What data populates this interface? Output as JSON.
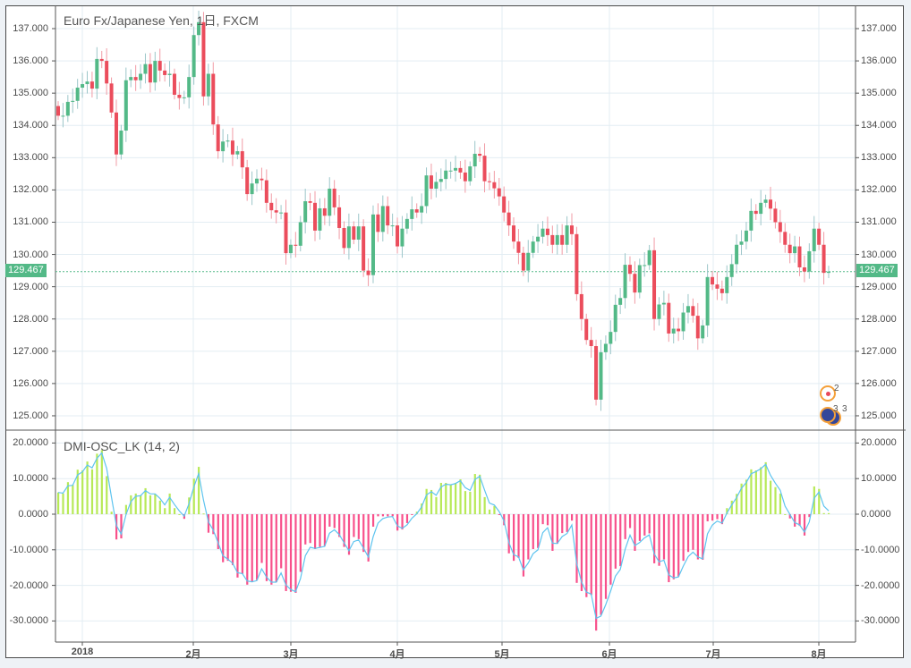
{
  "title": "Euro Fx/Japanese Yen, 1日, FXCM",
  "indicator_title": "DMI-OSC_LK (14, 2)",
  "last_price": "129.467",
  "last_price_value": 129.467,
  "price_axis": [
    "137.000",
    "136.000",
    "135.000",
    "134.000",
    "133.000",
    "132.000",
    "131.000",
    "130.000",
    "129.000",
    "128.000",
    "127.000",
    "126.000",
    "125.000"
  ],
  "price_axis_values": [
    137,
    136,
    135,
    134,
    133,
    132,
    131,
    130,
    129,
    128,
    127,
    126,
    125
  ],
  "osc_axis": [
    "20.0000",
    "10.0000",
    "0.0000",
    "-10.0000",
    "-20.0000",
    "-30.0000"
  ],
  "osc_axis_values": [
    20,
    10,
    0,
    -10,
    -20,
    -30
  ],
  "time_axis": [
    "2018",
    "2月",
    "3月",
    "4月",
    "5月",
    "6月",
    "7月",
    "8月"
  ],
  "event_markers": [
    {
      "count": "2",
      "type": "event-dot"
    },
    {
      "count": "3",
      "type": "eu-flag"
    },
    {
      "count": "3",
      "type": "eu-flag"
    }
  ],
  "colors": {
    "up": "#53b987",
    "down": "#eb4d5c",
    "up_wick": "#9cc6c9",
    "down_wick": "#f19ba5",
    "hist_pos": "#b7e957",
    "hist_neg": "#f8508b",
    "signal": "#5ec4ef",
    "grid": "#e3edf3",
    "last_line": "#53b987"
  },
  "chart_data": {
    "type": "candlestick",
    "first_open": 134.6,
    "closes": [
      134.3,
      134.3,
      134.73,
      134.76,
      135.17,
      135.28,
      135.36,
      135.14,
      136.06,
      136.0,
      135.3,
      134.4,
      133.1,
      133.84,
      135.4,
      135.5,
      135.4,
      135.6,
      135.9,
      135.33,
      136.0,
      135.7,
      135.56,
      135.6,
      134.95,
      134.85,
      134.87,
      135.5,
      136.8,
      137.2,
      134.9,
      135.6,
      134.03,
      133.2,
      133.5,
      133.53,
      133.1,
      133.2,
      132.7,
      131.87,
      132.2,
      132.35,
      132.3,
      131.6,
      131.37,
      131.3,
      131.3,
      130.04,
      130.3,
      130.27,
      131.0,
      131.65,
      131.6,
      130.74,
      131.43,
      131.2,
      132.04,
      131.46,
      130.82,
      130.2,
      130.87,
      130.46,
      130.87,
      129.5,
      129.36,
      131.24,
      130.7,
      131.5,
      130.9,
      130.9,
      130.25,
      130.8,
      131.1,
      131.4,
      131.3,
      131.5,
      132.45,
      132.04,
      132.25,
      132.34,
      132.6,
      132.6,
      132.68,
      132.54,
      132.27,
      132.73,
      133.12,
      133.06,
      132.27,
      132.24,
      132.05,
      131.8,
      131.3,
      130.9,
      130.4,
      130.05,
      129.5,
      130.05,
      130.4,
      130.55,
      130.8,
      130.6,
      130.3,
      130.6,
      130.3,
      130.9,
      130.63,
      128.77,
      128.0,
      127.35,
      127.16,
      125.5,
      126.97,
      127.23,
      127.6,
      128.44,
      128.65,
      129.68,
      129.4,
      128.82,
      129.67,
      129.67,
      130.13,
      128.0,
      128.45,
      128.5,
      127.55,
      127.7,
      127.62,
      128.2,
      128.4,
      128.1,
      127.4,
      127.8,
      129.3,
      129.07,
      128.94,
      128.8,
      129.3,
      129.7,
      130.3,
      130.4,
      130.74,
      131.35,
      131.26,
      131.6,
      131.7,
      131.42,
      131.0,
      130.7,
      130.3,
      130.04,
      130.25,
      129.6,
      129.47,
      130.1,
      130.8,
      130.3,
      129.43,
      129.47
    ],
    "oscillator": [
      6.1,
      5.8,
      9,
      8.2,
      12.5,
      12.3,
      14.8,
      12.6,
      17,
      18,
      10.7,
      0.7,
      -7.1,
      -6.8,
      2.6,
      5.3,
      5.8,
      5.3,
      7.3,
      5.3,
      5.7,
      3.8,
      1.7,
      5.8,
      1.7,
      0,
      -1.3,
      4.7,
      10,
      13.3,
      0.2,
      -5.2,
      -5.6,
      -9.8,
      -13.5,
      -13.1,
      -14.3,
      -17.8,
      -16.8,
      -19.8,
      -19.1,
      -18.5,
      -13.7,
      -18.8,
      -19.8,
      -19.1,
      -15.2,
      -21.6,
      -21.8,
      -22.1,
      -16.2,
      -8.5,
      -8.1,
      -9.8,
      -9.2,
      -8.9,
      -3.5,
      -3.9,
      -6.4,
      -9.2,
      -11.4,
      -6.4,
      -7,
      -10.6,
      -13.3,
      -3.5,
      -0.6,
      -0.6,
      -0.6,
      -0.6,
      -4.6,
      -4.3,
      -2.5,
      -0.2,
      0.7,
      3,
      7.1,
      6.8,
      4.8,
      8.8,
      8.8,
      8.2,
      8.8,
      9.8,
      6.5,
      6.3,
      11.3,
      11.1,
      4.8,
      1.3,
      2.3,
      -0.2,
      -3.1,
      -11,
      -13.1,
      -12.3,
      -17.5,
      -12.7,
      -9.8,
      -9.5,
      -2.8,
      -3.1,
      -10.3,
      -8.3,
      -5.3,
      -5,
      -1.8,
      -19.3,
      -21.6,
      -23.3,
      -22.7,
      -32.7,
      -28.3,
      -23.8,
      -19.8,
      -15.3,
      -14.6,
      -7,
      -3.9,
      -10.3,
      -7.5,
      -6,
      -5.4,
      -13.8,
      -14.5,
      -12.7,
      -19.1,
      -18.3,
      -17.5,
      -13.1,
      -10.6,
      -10,
      -12.7,
      -12.8,
      -2,
      -1.8,
      -1.4,
      -2.8,
      1.7,
      3.8,
      5.7,
      8.6,
      9.7,
      12.6,
      12.3,
      13.2,
      14.6,
      9.4,
      7.6,
      5.8,
      0,
      -1.2,
      -3.5,
      -3.3,
      -6,
      -0.8,
      7.8,
      7.1,
      0.3,
      0.3
    ],
    "price_range": [
      125,
      137
    ],
    "osc_range": [
      -30,
      20
    ]
  }
}
